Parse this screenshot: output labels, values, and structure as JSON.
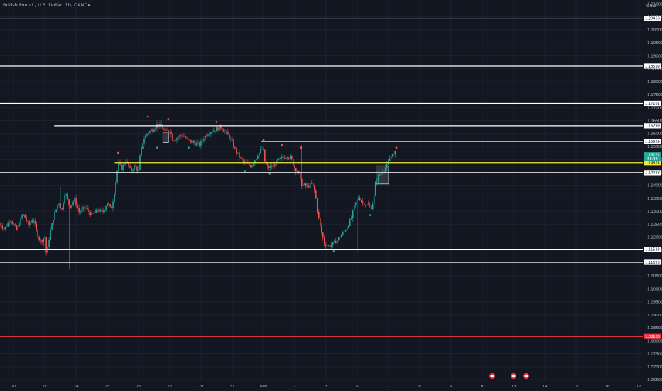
{
  "header": {
    "title": "British Pound / U.S. Dollar, 1h, OANDA",
    "unit": "USD"
  },
  "colors": {
    "background": "#131722",
    "grid": "#1e222d",
    "text": "#b2b5be",
    "up": "#26a69a",
    "down": "#ef5350",
    "resistance": "#ffffff",
    "pivot": "#f5e83a",
    "stop": "#f23645",
    "price_badge": "#26a69a"
  },
  "icons": [
    "calendar-event-icon",
    "calendar-event-icon",
    "calendar-event-icon"
  ],
  "chart_data": {
    "type": "candlestick",
    "x_ticks": [
      "20",
      "21",
      "24",
      "25",
      "26",
      "27",
      "28",
      "31",
      "Nov",
      "2",
      "3",
      "6",
      "7",
      "8",
      "9",
      "10",
      "13",
      "14",
      "15",
      "16",
      "17"
    ],
    "y_ticks": [
      "1.21000",
      "1.20500",
      "1.20000",
      "1.19500",
      "1.19000",
      "1.18500",
      "1.18000",
      "1.17500",
      "1.17000",
      "1.16500",
      "1.16000",
      "1.15500",
      "1.15000",
      "1.14500",
      "1.14000",
      "1.13500",
      "1.13000",
      "1.12500",
      "1.12000",
      "1.11500",
      "1.11000",
      "1.10500",
      "1.10000",
      "1.09500",
      "1.09000",
      "1.08500",
      "1.08000",
      "1.07500",
      "1.07000",
      "1.06500"
    ],
    "ylim": [
      1.064,
      1.213
    ],
    "levels": [
      {
        "label": "1.20450",
        "value": 1.2045,
        "color": "#ffffff",
        "x_start": 0
      },
      {
        "label": "1.18599",
        "value": 1.18599,
        "color": "#ffffff",
        "x_start": 0
      },
      {
        "label": "1.17161",
        "value": 1.17161,
        "color": "#ffffff",
        "x_start": 0
      },
      {
        "label": "1.16299",
        "value": 1.16299,
        "color": "#ffffff",
        "x_start": 1.3
      },
      {
        "label": "1.15689",
        "value": 1.15689,
        "color": "#ffffff",
        "x_start": 7.92
      },
      {
        "label": "1.14874",
        "value": 1.14874,
        "color": "#f5e83a",
        "x_start": 3.24
      },
      {
        "label": "1.14488",
        "value": 1.14488,
        "color": "#ffffff",
        "x_start": 0
      },
      {
        "label": "1.11533",
        "value": 1.11533,
        "color": "#ffffff",
        "x_start": 0
      },
      {
        "label": "1.11026",
        "value": 1.11026,
        "color": "#ffffff",
        "x_start": 0
      },
      {
        "label": "1.08166",
        "value": 1.08166,
        "color": "#f23645",
        "x_start": 0
      }
    ],
    "last_price": {
      "value": 1.15121,
      "label": "1.15121",
      "countdown": "56:42"
    },
    "path": [
      [
        -0.45,
        1.1255
      ],
      [
        -0.3,
        1.123
      ],
      [
        -0.1,
        1.127
      ],
      [
        0.1,
        1.1225
      ],
      [
        0.3,
        1.129
      ],
      [
        0.5,
        1.1245
      ],
      [
        0.62,
        1.1275
      ],
      [
        0.75,
        1.1215
      ],
      [
        0.88,
        1.118
      ],
      [
        1.0,
        1.1205
      ],
      [
        1.06,
        1.1125
      ],
      [
        1.15,
        1.1205
      ],
      [
        1.3,
        1.1285
      ],
      [
        1.45,
        1.1335
      ],
      [
        1.55,
        1.1305
      ],
      [
        1.65,
        1.1375
      ],
      [
        1.8,
        1.1315
      ],
      [
        1.95,
        1.1345
      ],
      [
        2.1,
        1.1295
      ],
      [
        2.3,
        1.1315
      ],
      [
        2.5,
        1.1285
      ],
      [
        2.7,
        1.1305
      ],
      [
        2.85,
        1.1295
      ],
      [
        3.0,
        1.1335
      ],
      [
        3.12,
        1.1305
      ],
      [
        3.22,
        1.1365
      ],
      [
        3.35,
        1.1485
      ],
      [
        3.45,
        1.1465
      ],
      [
        3.6,
        1.1495
      ],
      [
        3.75,
        1.1455
      ],
      [
        3.88,
        1.1475
      ],
      [
        4.0,
        1.1455
      ],
      [
        4.05,
        1.1515
      ],
      [
        4.15,
        1.1575
      ],
      [
        4.3,
        1.1605
      ],
      [
        4.45,
        1.1615
      ],
      [
        4.6,
        1.1635
      ],
      [
        4.75,
        1.1625
      ],
      [
        4.85,
        1.1605
      ],
      [
        5.0,
        1.1615
      ],
      [
        5.1,
        1.1575
      ],
      [
        5.25,
        1.1585
      ],
      [
        5.4,
        1.1595
      ],
      [
        5.55,
        1.1575
      ],
      [
        5.75,
        1.1565
      ],
      [
        5.95,
        1.1555
      ],
      [
        6.1,
        1.1585
      ],
      [
        6.25,
        1.1605
      ],
      [
        6.45,
        1.1615
      ],
      [
        6.65,
        1.1625
      ],
      [
        6.85,
        1.1595
      ],
      [
        7.0,
        1.1565
      ],
      [
        7.1,
        1.1535
      ],
      [
        7.25,
        1.1505
      ],
      [
        7.4,
        1.1485
      ],
      [
        7.6,
        1.1475
      ],
      [
        7.75,
        1.1505
      ],
      [
        7.85,
        1.1525
      ],
      [
        7.98,
        1.1545
      ],
      [
        8.05,
        1.1485
      ],
      [
        8.15,
        1.1465
      ],
      [
        8.3,
        1.1475
      ],
      [
        8.45,
        1.1495
      ],
      [
        8.6,
        1.1505
      ],
      [
        8.75,
        1.1515
      ],
      [
        8.88,
        1.1505
      ],
      [
        9.0,
        1.1465
      ],
      [
        9.1,
        1.1455
      ],
      [
        9.2,
        1.1405
      ],
      [
        9.4,
        1.1395
      ],
      [
        9.55,
        1.1405
      ],
      [
        9.65,
        1.1375
      ],
      [
        9.72,
        1.1305
      ],
      [
        9.82,
        1.1235
      ],
      [
        9.95,
        1.1175
      ],
      [
        10.1,
        1.1165
      ],
      [
        10.25,
        1.1175
      ],
      [
        10.4,
        1.1195
      ],
      [
        10.55,
        1.1215
      ],
      [
        10.7,
        1.1245
      ],
      [
        10.82,
        1.1275
      ],
      [
        10.92,
        1.1325
      ],
      [
        11.05,
        1.1355
      ],
      [
        11.15,
        1.1335
      ],
      [
        11.3,
        1.1325
      ],
      [
        11.45,
        1.1315
      ],
      [
        11.53,
        1.1345
      ],
      [
        11.58,
        1.1405
      ],
      [
        11.68,
        1.1435
      ],
      [
        11.82,
        1.1455
      ],
      [
        11.95,
        1.1475
      ],
      [
        12.05,
        1.1505
      ],
      [
        12.15,
        1.1535
      ],
      [
        12.22,
        1.1512
      ]
    ],
    "signals": [
      {
        "x": 3.35,
        "y": 1.1525,
        "dir": "down"
      },
      {
        "x": 4.15,
        "y": 1.1545,
        "dir": "up"
      },
      {
        "x": 4.3,
        "y": 1.1665,
        "dir": "down"
      },
      {
        "x": 4.6,
        "y": 1.1545,
        "dir": "up"
      },
      {
        "x": 4.95,
        "y": 1.1655,
        "dir": "down"
      },
      {
        "x": 5.6,
        "y": 1.1545,
        "dir": "up"
      },
      {
        "x": 6.5,
        "y": 1.1645,
        "dir": "down"
      },
      {
        "x": 7.4,
        "y": 1.1455,
        "dir": "up"
      },
      {
        "x": 8.0,
        "y": 1.1575,
        "dir": "down"
      },
      {
        "x": 8.2,
        "y": 1.1445,
        "dir": "up"
      },
      {
        "x": 8.6,
        "y": 1.1555,
        "dir": "down"
      },
      {
        "x": 9.2,
        "y": 1.1545,
        "dir": "down"
      },
      {
        "x": 10.25,
        "y": 1.1145,
        "dir": "up"
      },
      {
        "x": 11.42,
        "y": 1.1285,
        "dir": "up"
      },
      {
        "x": 12.25,
        "y": 1.1545,
        "dir": "down"
      }
    ],
    "boxes": [
      {
        "x0": 4.78,
        "x1": 4.96,
        "y0": 1.1565,
        "y1": 1.1605
      },
      {
        "x0": 11.6,
        "x1": 12.0,
        "y0": 1.1405,
        "y1": 1.1475
      }
    ]
  }
}
